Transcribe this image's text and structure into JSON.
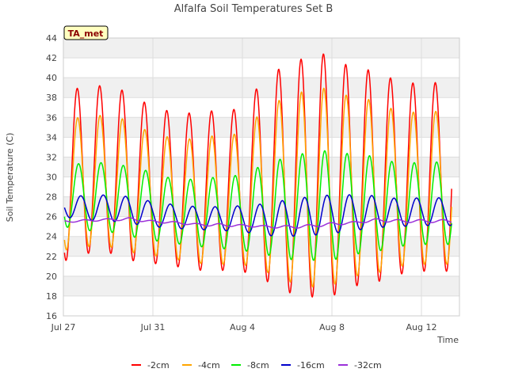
{
  "chart_data": {
    "type": "line",
    "title": "Alfalfa Soil Temperatures Set B",
    "xlabel": "Time",
    "ylabel": "Soil Temperature (C)",
    "station_tag": "TA_met",
    "x_ticks": [
      "Jul 27",
      "Jul 31",
      "Aug 4",
      "Aug 8",
      "Aug 12"
    ],
    "x_tick_days": [
      0,
      4,
      8,
      12,
      16
    ],
    "xlim_days": [
      0,
      17.7
    ],
    "ylim": [
      16,
      44
    ],
    "y_ticks": [
      16,
      18,
      20,
      22,
      24,
      26,
      28,
      30,
      32,
      34,
      36,
      38,
      40,
      42,
      44
    ],
    "grid": true,
    "legend_position": "bottom",
    "series": [
      {
        "name": "-2cm",
        "color": "#ff0000",
        "daily_max": [
          38.8,
          39.0,
          39.3,
          38.4,
          37.0,
          36.5,
          36.4,
          36.8,
          36.8,
          40.1,
          41.3,
          42.2,
          42.5,
          40.6,
          40.9,
          39.4,
          39.5
        ],
        "daily_min": [
          21.5,
          22.3,
          22.4,
          21.6,
          21.3,
          21.0,
          20.6,
          20.6,
          20.5,
          19.6,
          18.4,
          17.9,
          18.0,
          19.0,
          19.4,
          20.2,
          20.5
        ]
      },
      {
        "name": "-4cm",
        "color": "#ffa500",
        "daily_max": [
          35.9,
          36.0,
          36.3,
          35.6,
          34.3,
          33.9,
          33.8,
          34.3,
          34.3,
          37.0,
          38.1,
          38.8,
          39.0,
          37.8,
          37.8,
          36.4,
          36.6
        ],
        "daily_min": [
          22.6,
          23.0,
          23.0,
          22.4,
          22.1,
          21.7,
          21.3,
          21.2,
          21.2,
          20.5,
          19.5,
          18.9,
          19.1,
          20.0,
          20.3,
          21.0,
          21.2
        ]
      },
      {
        "name": "-8cm",
        "color": "#00ee00",
        "daily_max": [
          31.4,
          31.3,
          31.5,
          31.0,
          30.5,
          29.7,
          29.8,
          30.0,
          30.2,
          31.3,
          32.0,
          32.5,
          32.7,
          32.2,
          32.1,
          31.3,
          31.5
        ],
        "daily_min": [
          25.0,
          24.6,
          24.5,
          24.0,
          23.6,
          23.3,
          23.0,
          22.8,
          22.6,
          22.2,
          21.7,
          21.6,
          21.6,
          22.2,
          22.5,
          23.0,
          23.2
        ]
      },
      {
        "name": "-16cm",
        "color": "#0000cc",
        "daily_max": [
          28.1,
          28.1,
          28.2,
          28.0,
          27.5,
          27.2,
          27.0,
          27.0,
          27.1,
          27.3,
          27.7,
          28.0,
          28.2,
          28.2,
          28.1,
          27.8,
          27.9
        ],
        "daily_min": [
          26.0,
          25.6,
          25.6,
          25.3,
          25.0,
          24.8,
          24.7,
          24.6,
          24.5,
          24.1,
          24.0,
          24.1,
          24.3,
          24.6,
          24.9,
          25.0,
          25.1
        ]
      },
      {
        "name": "-32cm",
        "color": "#9b30d9",
        "daily_max": [
          25.6,
          25.7,
          25.8,
          25.9,
          25.6,
          25.5,
          25.3,
          25.3,
          25.2,
          25.1,
          25.1,
          25.2,
          25.4,
          25.5,
          25.8,
          25.7,
          25.7
        ],
        "daily_min": [
          25.4,
          25.5,
          25.6,
          25.6,
          25.4,
          25.3,
          25.1,
          25.0,
          25.0,
          24.9,
          24.8,
          24.9,
          25.1,
          25.3,
          25.5,
          25.4,
          25.4
        ]
      }
    ]
  }
}
